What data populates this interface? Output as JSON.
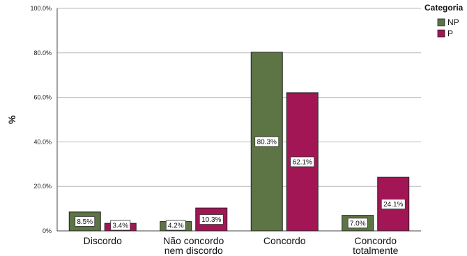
{
  "chart_data": {
    "type": "bar",
    "categories": [
      [
        "Discordo"
      ],
      [
        "Não concordo",
        "nem discordo"
      ],
      [
        "Concordo"
      ],
      [
        "Concordo",
        "totalmente"
      ]
    ],
    "series": [
      {
        "name": "NP",
        "color": "#5d7444",
        "values": [
          8.5,
          4.2,
          80.3,
          7.0
        ],
        "labels": [
          "8.5%",
          "4.2%",
          "80.3%",
          "7.0%"
        ]
      },
      {
        "name": "P",
        "color": "#a31655",
        "values": [
          3.4,
          10.3,
          62.1,
          24.1
        ],
        "labels": [
          "3.4%",
          "10.3%",
          "62.1%",
          "24.1%"
        ]
      }
    ],
    "ylabel": "%",
    "ylim": [
      0,
      100
    ],
    "yticks": [
      0,
      20,
      40,
      60,
      80,
      100
    ],
    "ytick_labels": [
      "0%",
      "20.0%",
      "40.0%",
      "60.0%",
      "80.0%",
      "100.0%"
    ],
    "legend_title": "Categoria",
    "legend_position": "top-right",
    "grid": true
  }
}
